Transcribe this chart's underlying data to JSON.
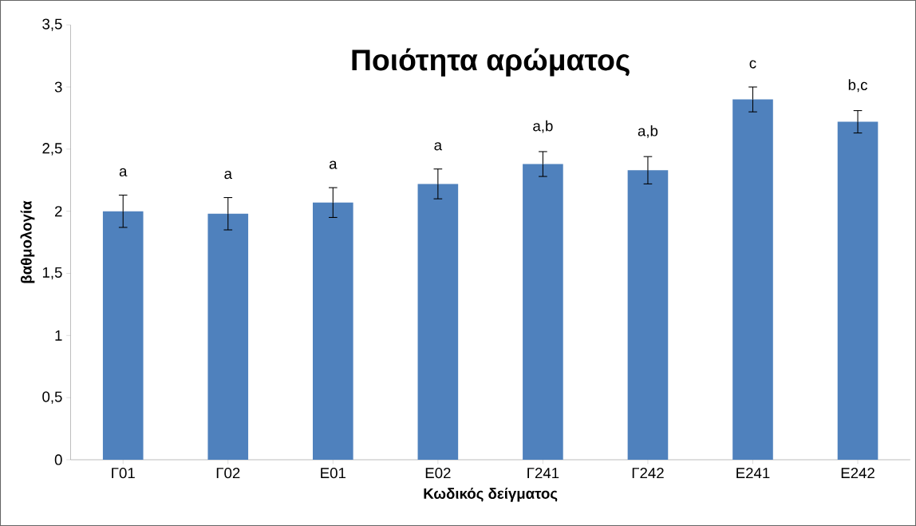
{
  "chart_data": {
    "type": "bar",
    "title": "Ποιότητα αρώματος",
    "xlabel": "Κωδικός δείγματος",
    "ylabel": "βαθμολογία",
    "categories": [
      "Γ01",
      "Γ02",
      "Ε01",
      "Ε02",
      "Γ241",
      "Γ242",
      "Ε241",
      "Ε242"
    ],
    "values": [
      2.0,
      1.98,
      2.07,
      2.22,
      2.38,
      2.33,
      2.9,
      2.72
    ],
    "errors": [
      0.13,
      0.13,
      0.12,
      0.12,
      0.1,
      0.11,
      0.1,
      0.09
    ],
    "color": "#4f81bd",
    "ylim": [
      0,
      3.5
    ],
    "yticks": [
      0,
      {
        "value": 0.5,
        "label": "0,5"
      },
      1,
      {
        "value": 1.5,
        "label": "1,5"
      },
      2,
      {
        "value": 2.5,
        "label": "2,5"
      },
      3,
      {
        "value": 3.5,
        "label": "3,5"
      }
    ],
    "annotations": [
      "a",
      "a",
      "a",
      "a",
      "a,b",
      "a,b",
      "c",
      "b,c"
    ]
  }
}
